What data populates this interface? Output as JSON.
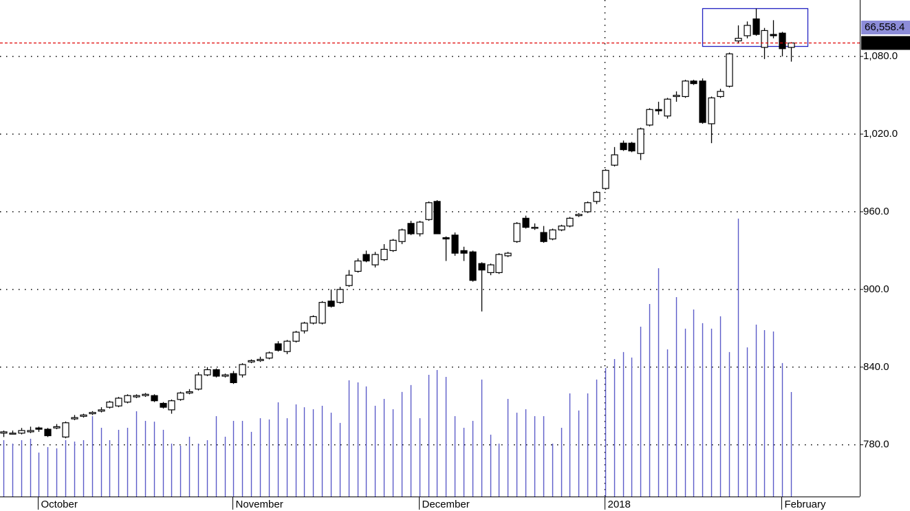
{
  "chart_data": {
    "type": "candlestick",
    "categories": [
      null,
      null,
      null,
      null,
      "October",
      null,
      null,
      null,
      null,
      null,
      null,
      null,
      null,
      null,
      null,
      null,
      null,
      null,
      null,
      null,
      null,
      null,
      null,
      null,
      null,
      null,
      "November",
      null,
      null,
      null,
      null,
      null,
      null,
      null,
      null,
      null,
      null,
      null,
      null,
      null,
      null,
      null,
      null,
      null,
      null,
      null,
      null,
      "December",
      null,
      null,
      null,
      null,
      null,
      null,
      null,
      null,
      null,
      null,
      null,
      null,
      null,
      null,
      null,
      null,
      null,
      null,
      null,
      null,
      "2018",
      null,
      null,
      null,
      null,
      null,
      null,
      null,
      null,
      null,
      null,
      null,
      null,
      null,
      null,
      null,
      null,
      null,
      null,
      null,
      "February",
      null
    ],
    "open": [
      789,
      789,
      789,
      790,
      793,
      792,
      793,
      786,
      800,
      802,
      804,
      806,
      809,
      810,
      813,
      817,
      818,
      818,
      812,
      807,
      815,
      820,
      823,
      834,
      838,
      833,
      835,
      834,
      844,
      845,
      847,
      858,
      852,
      860,
      868,
      874,
      874,
      891,
      890,
      903,
      914,
      927,
      919,
      923,
      930,
      937,
      951,
      943,
      954,
      968,
      940,
      942,
      930,
      929,
      920,
      913,
      913,
      926,
      937,
      955,
      948,
      944,
      939,
      946,
      949,
      957,
      960,
      968,
      978,
      996,
      1013,
      1013,
      1005,
      1027,
      1039,
      1034,
      1049,
      1049,
      1061,
      1061,
      1028,
      1049,
      1057,
      1092,
      1096,
      1109,
      1087,
      1097,
      1098,
      1087
    ],
    "high": [
      791,
      791,
      793,
      794,
      794,
      793,
      796,
      798,
      803,
      804,
      806,
      809,
      814,
      817,
      819,
      819,
      820,
      819,
      813,
      815,
      821,
      823,
      836,
      840,
      839,
      835,
      837,
      843,
      846,
      848,
      852,
      860,
      861,
      868,
      875,
      880,
      891,
      900,
      902,
      915,
      924,
      930,
      929,
      935,
      939,
      947,
      953,
      953,
      968,
      969,
      941,
      944,
      933,
      930,
      921,
      920,
      928,
      929,
      952,
      957,
      951,
      949,
      947,
      950,
      956,
      959,
      968,
      976,
      993,
      1010,
      1015,
      1014,
      1025,
      1040,
      1045,
      1048,
      1053,
      1062,
      1062,
      1063,
      1049,
      1055,
      1083,
      1104,
      1107,
      1117,
      1102,
      1108,
      1099,
      1091
    ],
    "low": [
      786,
      788,
      788,
      789,
      790,
      786,
      792,
      785,
      799,
      801,
      803,
      805,
      808,
      809,
      812,
      816,
      817,
      813,
      808,
      804,
      814,
      819,
      822,
      833,
      832,
      832,
      827,
      832,
      843,
      844,
      846,
      852,
      850,
      859,
      866,
      873,
      873,
      886,
      889,
      902,
      913,
      921,
      917,
      922,
      929,
      935,
      942,
      941,
      953,
      943,
      922,
      926,
      922,
      906,
      883,
      911,
      912,
      925,
      936,
      947,
      946,
      936,
      938,
      945,
      948,
      956,
      959,
      966,
      977,
      995,
      1007,
      1006,
      1000,
      1026,
      1035,
      1032,
      1045,
      1048,
      1058,
      1028,
      1013,
      1048,
      1056,
      1090,
      1094,
      1096,
      1078,
      1094,
      1080,
      1076
    ],
    "close": [
      790,
      789,
      791,
      791,
      792,
      787,
      794,
      797,
      801,
      803,
      805,
      807,
      813,
      816,
      818,
      818,
      819,
      814,
      809,
      814,
      820,
      821,
      834,
      838,
      833,
      834,
      828,
      842,
      845,
      846,
      851,
      853,
      860,
      867,
      874,
      879,
      890,
      887,
      900,
      911,
      922,
      922,
      927,
      931,
      938,
      946,
      943,
      952,
      967,
      943,
      939,
      928,
      928,
      907,
      915,
      919,
      927,
      928,
      951,
      948,
      948,
      937,
      946,
      949,
      955,
      958,
      967,
      975,
      992,
      1004,
      1008,
      1007,
      1024,
      1039,
      1038,
      1047,
      1050,
      1061,
      1059,
      1029,
      1048,
      1053,
      1082,
      1094,
      1104,
      1097,
      1100,
      1096,
      1086,
      1090.4
    ],
    "volume": [
      35900,
      33700,
      35900,
      36800,
      28000,
      31500,
      30700,
      35900,
      35000,
      35900,
      51200,
      43800,
      35900,
      42500,
      43800,
      54300,
      48200,
      47700,
      42500,
      33700,
      32400,
      38100,
      33700,
      35900,
      51200,
      38100,
      48200,
      48200,
      41200,
      49900,
      49100,
      60000,
      49900,
      58700,
      56900,
      55600,
      57800,
      53400,
      46900,
      74000,
      72700,
      70100,
      57800,
      62200,
      55600,
      66600,
      71000,
      49900,
      77500,
      80600,
      76200,
      51200,
      43800,
      48200,
      74500,
      39400,
      33700,
      62200,
      53400,
      55600,
      51200,
      51200,
      33700,
      43800,
      65700,
      54800,
      65700,
      74500,
      81900,
      87600,
      92000,
      88500,
      108200,
      122600,
      145400,
      93700,
      127000,
      106900,
      119100,
      110400,
      106900,
      114800,
      92000,
      177000,
      95000,
      109500,
      106000,
      105100,
      85000,
      66558.4
    ],
    "last_labels": {
      "close": "1,090.4",
      "volume": "66,558.4"
    },
    "up_color": "#ffffff",
    "down_color": "#000000",
    "volume_color": "#5a5ac8",
    "last_line_color": "#e00000",
    "ylim": [
      740,
      1123.6
    ],
    "yticks": [
      {
        "value": 780,
        "label": "780.0"
      },
      {
        "value": 840,
        "label": "840.0"
      },
      {
        "value": 900,
        "label": "900.0"
      },
      {
        "value": 960,
        "label": "960.0"
      },
      {
        "value": 1020,
        "label": "1,020.0"
      },
      {
        "value": 1080,
        "label": "1,080.0"
      }
    ],
    "y2lim": [
      0,
      316200
    ],
    "grid": true
  }
}
